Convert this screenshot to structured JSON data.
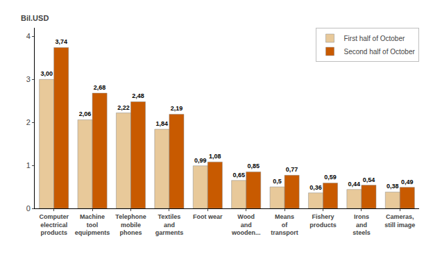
{
  "chart_data": {
    "type": "bar",
    "ylabel": "Bil.USD",
    "categories": [
      "Computer\nelectrical\nproducts",
      "Machine\ntool\nequipments",
      "Telephone\nmobile\nphones",
      "Textiles\nand\ngarments",
      "Foot wear",
      "Wood\nand\nwooden...",
      "Means\nof\ntransport",
      "Fishery\nproducts",
      "Irons\nand\nsteels",
      "Cameras,\nstill image"
    ],
    "series": [
      {
        "name": "First half of October",
        "color": "#E8C99A",
        "values": [
          3.0,
          2.06,
          2.22,
          1.84,
          0.99,
          0.65,
          0.5,
          0.36,
          0.44,
          0.38
        ],
        "value_labels": [
          "3,00",
          "2,06",
          "2,22",
          "1,84",
          "0,99",
          "0,65",
          "0,5",
          "0,36",
          "0,44",
          "0,38"
        ]
      },
      {
        "name": "Second half of October",
        "color": "#C85A00",
        "values": [
          3.74,
          2.68,
          2.48,
          2.19,
          1.08,
          0.85,
          0.77,
          0.59,
          0.54,
          0.49
        ],
        "value_labels": [
          "3,74",
          "2,68",
          "2,48",
          "2,19",
          "1,08",
          "0,85",
          "0,77",
          "0,59",
          "0,54",
          "0,49"
        ]
      }
    ],
    "ylim": [
      0,
      4.2
    ],
    "yticks": [
      0,
      1,
      2,
      3,
      4
    ],
    "grid": false,
    "legend": "upper right",
    "data_labels": true
  }
}
